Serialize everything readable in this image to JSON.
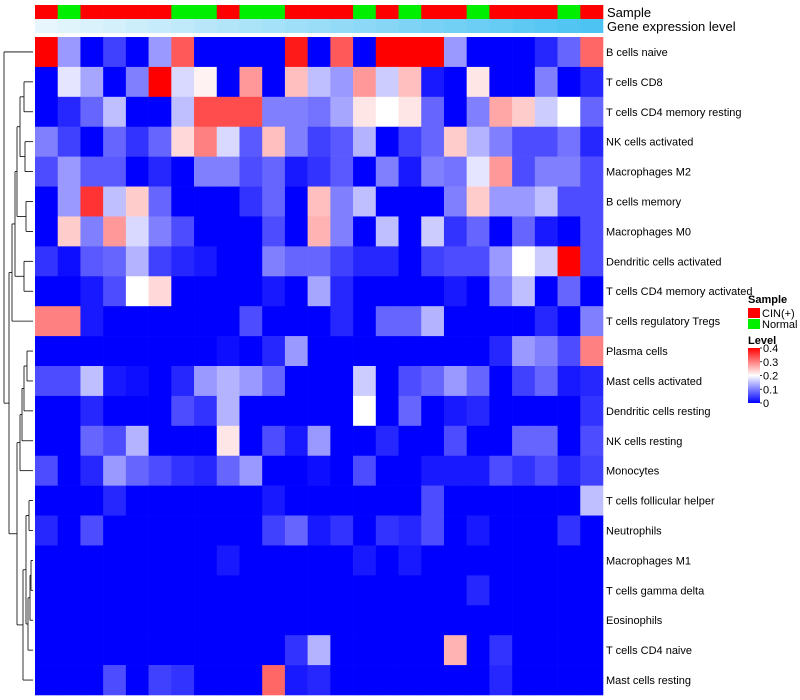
{
  "chart_data": {
    "type": "heatmap",
    "title": "",
    "annotation_tracks": [
      {
        "label": "Sample"
      },
      {
        "label": "Gene expression level"
      }
    ],
    "sample_groups": [
      "CIN(+)",
      "Normal",
      "CIN(+)",
      "CIN(+)",
      "CIN(+)",
      "CIN(+)",
      "Normal",
      "Normal",
      "CIN(+)",
      "Normal",
      "Normal",
      "CIN(+)",
      "CIN(+)",
      "CIN(+)",
      "Normal",
      "CIN(+)",
      "Normal",
      "CIN(+)",
      "CIN(+)",
      "Normal",
      "CIN(+)",
      "CIN(+)",
      "CIN(+)",
      "Normal",
      "CIN(+)"
    ],
    "expression_level_relative": [
      0.0,
      0.04,
      0.08,
      0.12,
      0.17,
      0.21,
      0.25,
      0.29,
      0.33,
      0.38,
      0.42,
      0.46,
      0.5,
      0.54,
      0.58,
      0.62,
      0.67,
      0.71,
      0.75,
      0.79,
      0.83,
      0.88,
      0.92,
      0.96,
      1.0
    ],
    "rows": [
      "B cells naive",
      "T cells CD8",
      "T cells CD4 memory resting",
      "NK cells activated",
      "Macrophages M2",
      "B cells memory",
      "Macrophages M0",
      "Dendritic cells activated",
      "T cells CD4 memory activated",
      "T cells regulatory  Tregs",
      "Plasma cells",
      "Mast cells activated",
      "Dendritic cells resting",
      "NK cells resting",
      "Monocytes",
      "T cells follicular helper",
      "Neutrophils",
      "Macrophages M1",
      "T cells gamma delta",
      "Eosinophils",
      "T cells CD4 naive",
      "Mast cells resting"
    ],
    "values": [
      [
        0.4,
        0.12,
        0.0,
        0.05,
        0.0,
        0.12,
        0.33,
        0.0,
        0.0,
        0.0,
        0.0,
        0.38,
        0.0,
        0.33,
        0.0,
        0.4,
        0.4,
        0.4,
        0.12,
        0.0,
        0.0,
        0.0,
        0.03,
        0.08,
        0.32
      ],
      [
        0.0,
        0.18,
        0.13,
        0.0,
        0.1,
        0.4,
        0.17,
        0.21,
        0.0,
        0.28,
        0.0,
        0.25,
        0.15,
        0.12,
        0.28,
        0.16,
        0.25,
        0.02,
        0.0,
        0.22,
        0.0,
        0.0,
        0.1,
        0.0,
        0.03
      ],
      [
        0.0,
        0.03,
        0.08,
        0.15,
        0.0,
        0.0,
        0.15,
        0.34,
        0.34,
        0.34,
        0.1,
        0.1,
        0.09,
        0.13,
        0.22,
        0.2,
        0.22,
        0.08,
        0.0,
        0.1,
        0.27,
        0.24,
        0.16,
        0.2,
        0.08
      ],
      [
        0.1,
        0.05,
        0.0,
        0.08,
        0.04,
        0.08,
        0.23,
        0.3,
        0.17,
        0.07,
        0.25,
        0.1,
        0.05,
        0.07,
        0.14,
        0.0,
        0.05,
        0.08,
        0.24,
        0.14,
        0.1,
        0.06,
        0.06,
        0.09,
        0.03
      ],
      [
        0.06,
        0.12,
        0.07,
        0.07,
        0.0,
        0.03,
        0.0,
        0.1,
        0.1,
        0.06,
        0.08,
        0.02,
        0.04,
        0.07,
        0.0,
        0.1,
        0.02,
        0.1,
        0.09,
        0.18,
        0.28,
        0.06,
        0.1,
        0.1,
        0.06
      ],
      [
        0.0,
        0.12,
        0.36,
        0.15,
        0.24,
        0.08,
        0.0,
        0.0,
        0.0,
        0.04,
        0.08,
        0.0,
        0.25,
        0.1,
        0.15,
        0.0,
        0.0,
        0.0,
        0.1,
        0.24,
        0.12,
        0.12,
        0.15,
        0.06,
        0.06
      ],
      [
        0.0,
        0.24,
        0.1,
        0.28,
        0.17,
        0.1,
        0.06,
        0.0,
        0.0,
        0.0,
        0.06,
        0.0,
        0.26,
        0.1,
        0.0,
        0.15,
        0.0,
        0.16,
        0.04,
        0.08,
        0.0,
        0.08,
        0.02,
        0.0,
        0.06
      ],
      [
        0.04,
        0.01,
        0.07,
        0.08,
        0.14,
        0.05,
        0.03,
        0.02,
        0.0,
        0.0,
        0.1,
        0.08,
        0.08,
        0.05,
        0.03,
        0.03,
        0.0,
        0.05,
        0.06,
        0.06,
        0.12,
        0.2,
        0.16,
        0.4,
        0.06
      ],
      [
        0.0,
        0.0,
        0.02,
        0.06,
        0.2,
        0.23,
        0.0,
        0.0,
        0.0,
        0.0,
        0.02,
        0.0,
        0.13,
        0.03,
        0.0,
        0.0,
        0.0,
        0.0,
        0.02,
        0.0,
        0.1,
        0.15,
        0.0,
        0.08,
        0.0
      ],
      [
        0.3,
        0.3,
        0.02,
        0.0,
        0.0,
        0.0,
        0.0,
        0.0,
        0.0,
        0.06,
        0.0,
        0.0,
        0.0,
        0.03,
        0.0,
        0.08,
        0.08,
        0.14,
        0.0,
        0.0,
        0.0,
        0.0,
        0.03,
        0.0,
        0.1
      ],
      [
        0.0,
        0.0,
        0.0,
        0.0,
        0.0,
        0.0,
        0.0,
        0.0,
        0.01,
        0.0,
        0.03,
        0.12,
        0.0,
        0.0,
        0.0,
        0.0,
        0.0,
        0.0,
        0.0,
        0.0,
        0.03,
        0.12,
        0.1,
        0.06,
        0.3
      ],
      [
        0.06,
        0.06,
        0.15,
        0.02,
        0.01,
        0.0,
        0.03,
        0.12,
        0.14,
        0.12,
        0.08,
        0.0,
        0.0,
        0.0,
        0.16,
        0.0,
        0.06,
        0.08,
        0.12,
        0.08,
        0.0,
        0.05,
        0.08,
        0.02,
        0.03
      ],
      [
        0.0,
        0.0,
        0.03,
        0.0,
        0.0,
        0.0,
        0.06,
        0.04,
        0.14,
        0.0,
        0.0,
        0.0,
        0.0,
        0.0,
        0.2,
        0.0,
        0.08,
        0.0,
        0.02,
        0.03,
        0.0,
        0.0,
        0.0,
        0.0,
        0.04
      ],
      [
        0.0,
        0.0,
        0.08,
        0.06,
        0.14,
        0.0,
        0.0,
        0.0,
        0.22,
        0.0,
        0.06,
        0.02,
        0.12,
        0.0,
        0.0,
        0.03,
        0.0,
        0.0,
        0.06,
        0.0,
        0.0,
        0.08,
        0.08,
        0.0,
        0.06
      ],
      [
        0.06,
        0.0,
        0.03,
        0.12,
        0.08,
        0.06,
        0.04,
        0.03,
        0.08,
        0.12,
        0.0,
        0.0,
        0.01,
        0.0,
        0.06,
        0.0,
        0.0,
        0.02,
        0.02,
        0.02,
        0.06,
        0.04,
        0.06,
        0.03,
        0.05
      ],
      [
        0.0,
        0.0,
        0.0,
        0.03,
        0.0,
        0.0,
        0.0,
        0.0,
        0.0,
        0.0,
        0.02,
        0.0,
        0.0,
        0.0,
        0.0,
        0.0,
        0.0,
        0.06,
        0.0,
        0.0,
        0.0,
        0.0,
        0.0,
        0.0,
        0.15
      ],
      [
        0.03,
        0.0,
        0.06,
        0.0,
        0.0,
        0.0,
        0.0,
        0.0,
        0.0,
        0.0,
        0.05,
        0.08,
        0.02,
        0.04,
        0.0,
        0.04,
        0.03,
        0.06,
        0.0,
        0.02,
        0.0,
        0.0,
        0.0,
        0.04,
        0.0
      ],
      [
        0.0,
        0.0,
        0.0,
        0.0,
        0.0,
        0.0,
        0.0,
        0.0,
        0.02,
        0.0,
        0.0,
        0.0,
        0.0,
        0.0,
        0.02,
        0.0,
        0.02,
        0.0,
        0.0,
        0.0,
        0.0,
        0.0,
        0.0,
        0.0,
        0.0
      ],
      [
        0.0,
        0.0,
        0.0,
        0.0,
        0.0,
        0.0,
        0.0,
        0.0,
        0.0,
        0.0,
        0.0,
        0.0,
        0.0,
        0.0,
        0.0,
        0.0,
        0.0,
        0.0,
        0.0,
        0.03,
        0.0,
        0.0,
        0.0,
        0.0,
        0.0
      ],
      [
        0.0,
        0.0,
        0.0,
        0.0,
        0.0,
        0.0,
        0.0,
        0.0,
        0.0,
        0.0,
        0.0,
        0.0,
        0.0,
        0.0,
        0.0,
        0.0,
        0.0,
        0.0,
        0.0,
        0.0,
        0.0,
        0.0,
        0.0,
        0.0,
        0.0
      ],
      [
        0.0,
        0.0,
        0.0,
        0.0,
        0.0,
        0.0,
        0.0,
        0.0,
        0.0,
        0.0,
        0.0,
        0.04,
        0.14,
        0.0,
        0.0,
        0.0,
        0.0,
        0.0,
        0.26,
        0.0,
        0.04,
        0.0,
        0.0,
        0.0,
        0.0
      ],
      [
        0.0,
        0.0,
        0.0,
        0.06,
        0.0,
        0.05,
        0.04,
        0.0,
        0.0,
        0.0,
        0.32,
        0.02,
        0.03,
        0.0,
        0.0,
        0.0,
        0.0,
        0.0,
        0.0,
        0.0,
        0.03,
        0.0,
        0.0,
        0.0,
        0.0
      ]
    ],
    "color_scale": {
      "min": 0,
      "max": 0.4,
      "stops": [
        {
          "value": 0,
          "color": "#0000ff"
        },
        {
          "value": 0.2,
          "color": "#ffffff"
        },
        {
          "value": 0.4,
          "color": "#ff0000"
        }
      ]
    },
    "group_colors": {
      "CIN(+)": "#ff0000",
      "Normal": "#00ee00"
    },
    "expression_colors": {
      "low": "#e6f6fc",
      "high": "#4cc3f2"
    },
    "legend_sample": {
      "title": "Sample",
      "items": [
        {
          "label": "CIN(+)",
          "color": "#ff0000"
        },
        {
          "label": "Normal",
          "color": "#00ee00"
        }
      ]
    },
    "legend_level": {
      "title": "Level",
      "ticks": [
        "0.4",
        "0.3",
        "0.2",
        "0.1",
        "0"
      ],
      "tick_values": [
        0.4,
        0.3,
        0.2,
        0.1,
        0
      ]
    },
    "row_dendrogram": true
  }
}
